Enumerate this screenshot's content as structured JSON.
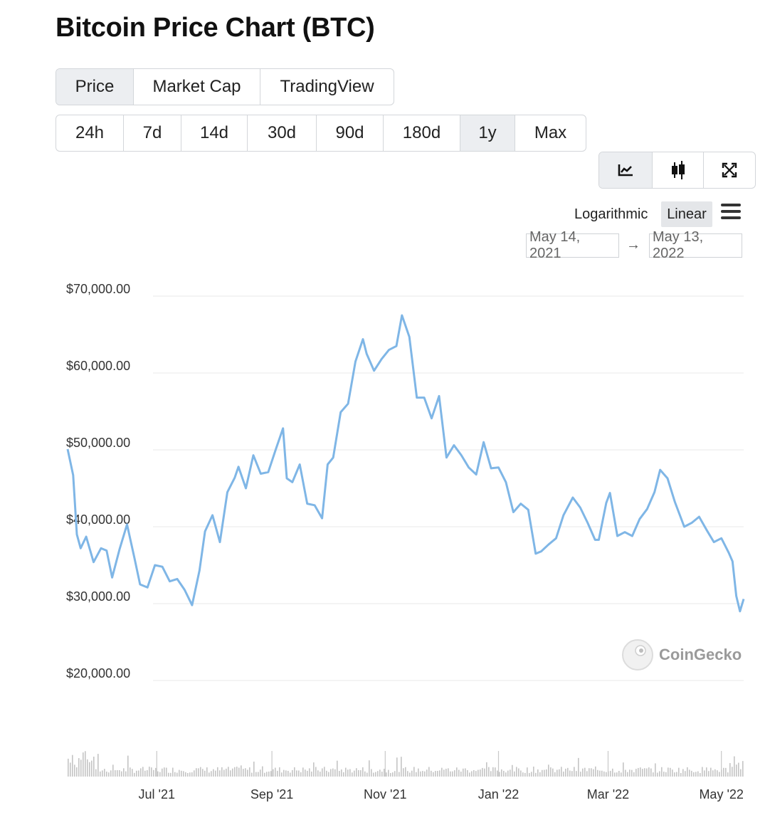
{
  "title": "Bitcoin Price Chart (BTC)",
  "tabs": [
    {
      "label": "Price",
      "active": true
    },
    {
      "label": "Market Cap",
      "active": false
    },
    {
      "label": "TradingView",
      "active": false
    }
  ],
  "ranges": [
    {
      "label": "24h",
      "active": false
    },
    {
      "label": "7d",
      "active": false
    },
    {
      "label": "14d",
      "active": false
    },
    {
      "label": "30d",
      "active": false
    },
    {
      "label": "90d",
      "active": false
    },
    {
      "label": "180d",
      "active": false
    },
    {
      "label": "1y",
      "active": true
    },
    {
      "label": "Max",
      "active": false
    }
  ],
  "views": [
    {
      "icon": "line-chart-icon",
      "active": true
    },
    {
      "icon": "candlestick-icon",
      "active": false
    },
    {
      "icon": "fullscreen-icon",
      "active": false
    }
  ],
  "scale": {
    "log_label": "Logarithmic",
    "linear_label": "Linear",
    "selected": "Linear"
  },
  "date_range": {
    "from": "May 14, 2021",
    "to": "May 13, 2022"
  },
  "watermark": "CoinGecko",
  "colors": {
    "line": "#7fb6e6",
    "volume": "#c4c4c4",
    "grid": "#e9e9e9"
  },
  "chart_data": {
    "type": "line",
    "series": [
      {
        "x": [
          "2021-05-14",
          "2021-05-17",
          "2021-05-19",
          "2021-05-21",
          "2021-05-24",
          "2021-05-28",
          "2021-06-01",
          "2021-06-04",
          "2021-06-07",
          "2021-06-11",
          "2021-06-15",
          "2021-06-19",
          "2021-06-22",
          "2021-06-26",
          "2021-06-30",
          "2021-07-04",
          "2021-07-08",
          "2021-07-12",
          "2021-07-16",
          "2021-07-20",
          "2021-07-24",
          "2021-07-27",
          "2021-07-31",
          "2021-08-04",
          "2021-08-08",
          "2021-08-12",
          "2021-08-14",
          "2021-08-18",
          "2021-08-22",
          "2021-08-26",
          "2021-08-30",
          "2021-09-03",
          "2021-09-07",
          "2021-09-09",
          "2021-09-12",
          "2021-09-16",
          "2021-09-20",
          "2021-09-24",
          "2021-09-28",
          "2021-10-01",
          "2021-10-04",
          "2021-10-08",
          "2021-10-12",
          "2021-10-16",
          "2021-10-20",
          "2021-10-22",
          "2021-10-26",
          "2021-10-30",
          "2021-11-03",
          "2021-11-07",
          "2021-11-10",
          "2021-11-14",
          "2021-11-18",
          "2021-11-22",
          "2021-11-26",
          "2021-11-30",
          "2021-12-04",
          "2021-12-08",
          "2021-12-12",
          "2021-12-16",
          "2021-12-20",
          "2021-12-24",
          "2021-12-28",
          "2022-01-01",
          "2022-01-05",
          "2022-01-09",
          "2022-01-13",
          "2022-01-17",
          "2022-01-21",
          "2022-01-24",
          "2022-01-28",
          "2022-02-01",
          "2022-02-05",
          "2022-02-10",
          "2022-02-14",
          "2022-02-18",
          "2022-02-22",
          "2022-02-24",
          "2022-02-28",
          "2022-03-02",
          "2022-03-06",
          "2022-03-10",
          "2022-03-14",
          "2022-03-18",
          "2022-03-22",
          "2022-03-26",
          "2022-03-29",
          "2022-04-02",
          "2022-04-06",
          "2022-04-11",
          "2022-04-15",
          "2022-04-19",
          "2022-04-23",
          "2022-04-27",
          "2022-05-01",
          "2022-05-05",
          "2022-05-07",
          "2022-05-09",
          "2022-05-11",
          "2022-05-13"
        ],
        "y": [
          50100,
          46700,
          39000,
          37200,
          38700,
          35400,
          37200,
          36900,
          33400,
          37100,
          40300,
          35900,
          32500,
          32100,
          35000,
          34800,
          32900,
          33200,
          31800,
          29800,
          34300,
          39400,
          41500,
          38000,
          44500,
          46400,
          47800,
          45000,
          49300,
          46900,
          47100,
          50000,
          52800,
          46300,
          45800,
          48100,
          43000,
          42800,
          41100,
          48100,
          49000,
          54900,
          56000,
          61500,
          64400,
          62500,
          60300,
          61800,
          63000,
          63500,
          67500,
          64700,
          56800,
          56800,
          54100,
          57000,
          49000,
          50600,
          49300,
          47700,
          46800,
          51000,
          47600,
          47700,
          45800,
          41900,
          43000,
          42200,
          36500,
          36800,
          37700,
          38500,
          41500,
          43800,
          42500,
          40500,
          38300,
          38300,
          43100,
          44400,
          38800,
          39300,
          38800,
          41000,
          42300,
          44500,
          47400,
          46300,
          43200,
          40000,
          40500,
          41300,
          39600,
          38000,
          38500,
          36600,
          35500,
          31000,
          29000,
          30600
        ]
      }
    ],
    "volume_bars": "present",
    "yticks": [
      "$20,000.00",
      "$30,000.00",
      "$40,000.00",
      "$50,000.00",
      "$60,000.00",
      "$70,000.00"
    ],
    "xticks": [
      "Jul '21",
      "Sep '21",
      "Nov '21",
      "Jan '22",
      "Mar '22",
      "May '22"
    ],
    "ylim": [
      20000,
      70000
    ],
    "grid": true
  }
}
